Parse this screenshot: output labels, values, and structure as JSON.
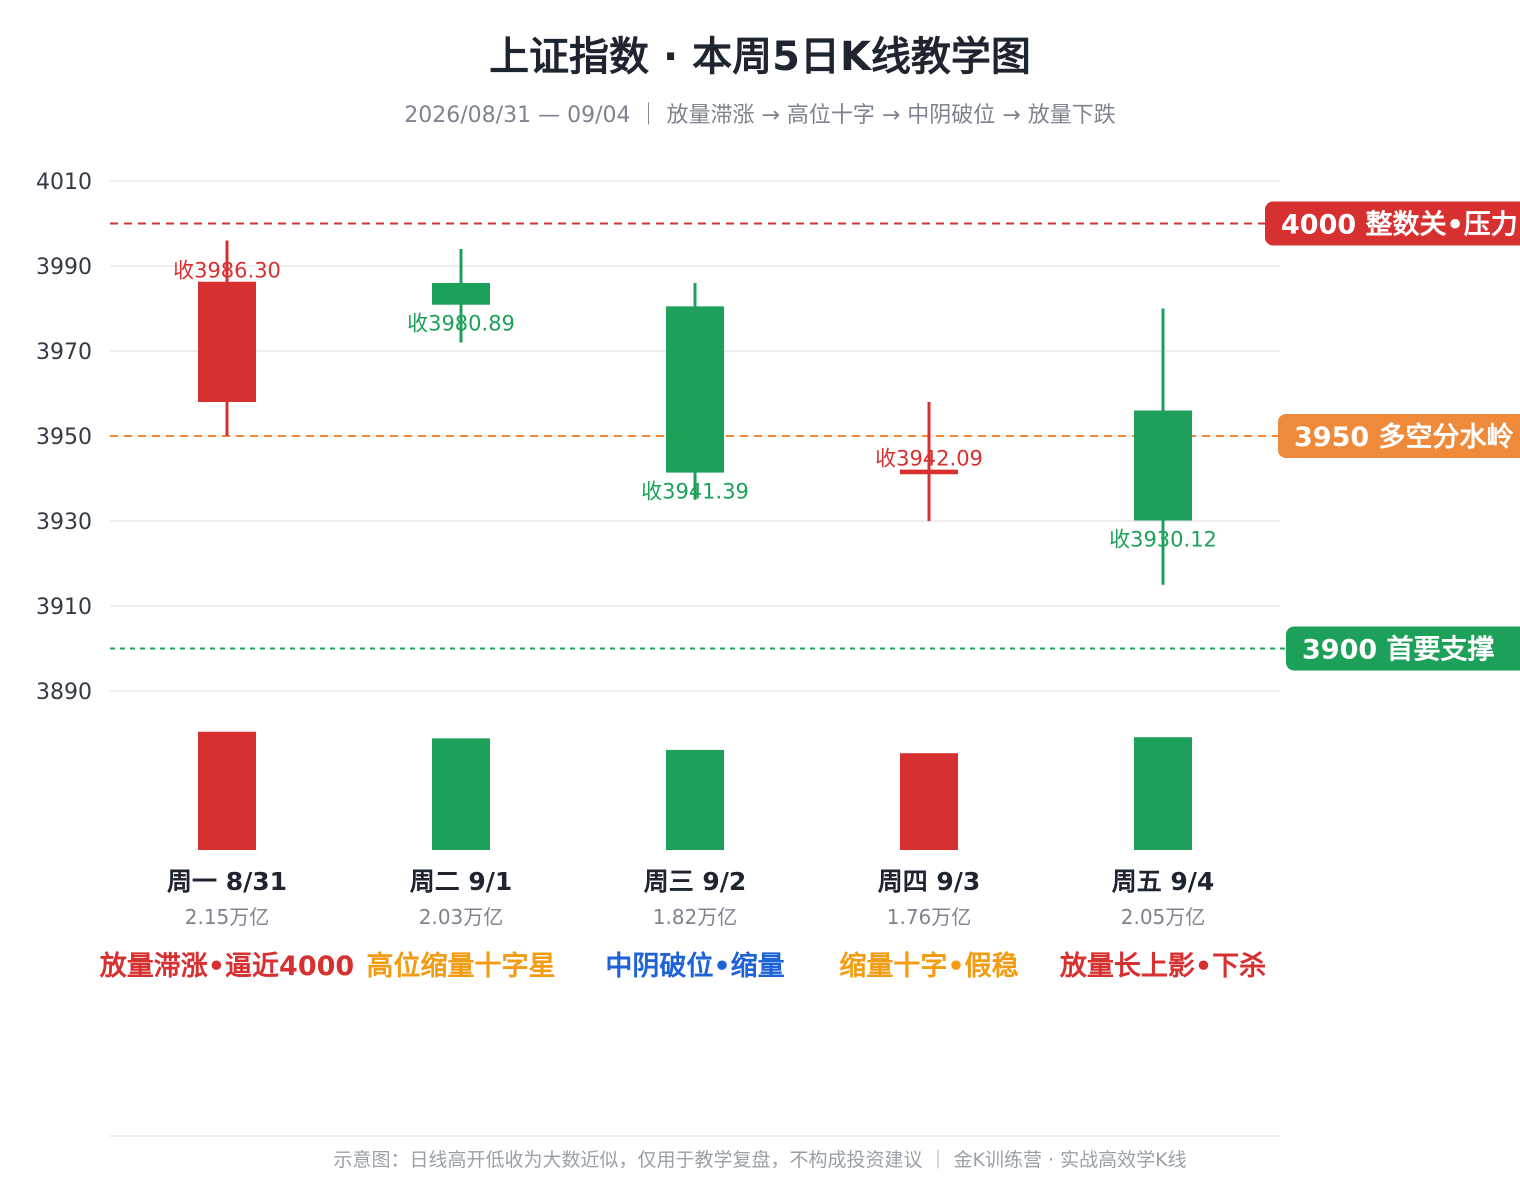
{
  "chart_data": {
    "type": "candlestick",
    "title": "上证指数 · 本周5日K线教学图",
    "subtitle": "2026/08/31 — 09/04 ｜ 放量滞涨 → 高位十字 → 中阴破位 → 放量下跌",
    "ylim": [
      3880,
      4015
    ],
    "yticks": [
      3890,
      3910,
      3930,
      3950,
      3970,
      3990,
      4010
    ],
    "grid": true,
    "days": [
      {
        "label": "周一 8/31",
        "open": 3958.0,
        "high": 3996.0,
        "low": 3950.0,
        "close": 3986.3,
        "close_label": "收3986.30",
        "volume": 2.15,
        "volume_label": "2.15万亿",
        "note": "放量滞涨•逼近4000",
        "note_color": "#d63031"
      },
      {
        "label": "周二 9/1",
        "open": 3986.0,
        "high": 3994.0,
        "low": 3972.0,
        "close": 3980.89,
        "close_label": "收3980.89",
        "volume": 2.03,
        "volume_label": "2.03万亿",
        "note": "高位缩量十字星",
        "note_color": "#f39c12"
      },
      {
        "label": "周三 9/2",
        "open": 3980.5,
        "high": 3986.0,
        "low": 3935.0,
        "close": 3941.39,
        "close_label": "收3941.39",
        "volume": 1.82,
        "volume_label": "1.82万亿",
        "note": "中阴破位•缩量",
        "note_color": "#1f63d6"
      },
      {
        "label": "周四 9/3",
        "open": 3941.0,
        "high": 3958.0,
        "low": 3930.0,
        "close": 3942.09,
        "close_label": "收3942.09",
        "volume": 1.76,
        "volume_label": "1.76万亿",
        "note": "缩量十字•假稳",
        "note_color": "#f39c12"
      },
      {
        "label": "周五 9/4",
        "open": 3956.0,
        "high": 3980.0,
        "low": 3915.0,
        "close": 3930.12,
        "close_label": "收3930.12",
        "volume": 2.05,
        "volume_label": "2.05万亿",
        "note": "放量长上影•下杀",
        "note_color": "#d63031"
      }
    ],
    "reference_lines": [
      {
        "value": 4000,
        "label": "4000 整数关•压力",
        "color": "#d63031",
        "style": "dashed"
      },
      {
        "value": 3950,
        "label": "3950 多空分水岭",
        "color": "#ef8a3a",
        "style": "dashed"
      },
      {
        "value": 3900,
        "label": "3900 首要支撑",
        "color": "#1ca05a",
        "style": "dotted"
      }
    ],
    "colors": {
      "up": "#d63031",
      "down": "#1ca05a"
    },
    "footer": "示意图：日线高开低收为大数近似，仅用于教学复盘，不构成投资建议 ｜ 金K训练营 · 实战高效学K线"
  }
}
